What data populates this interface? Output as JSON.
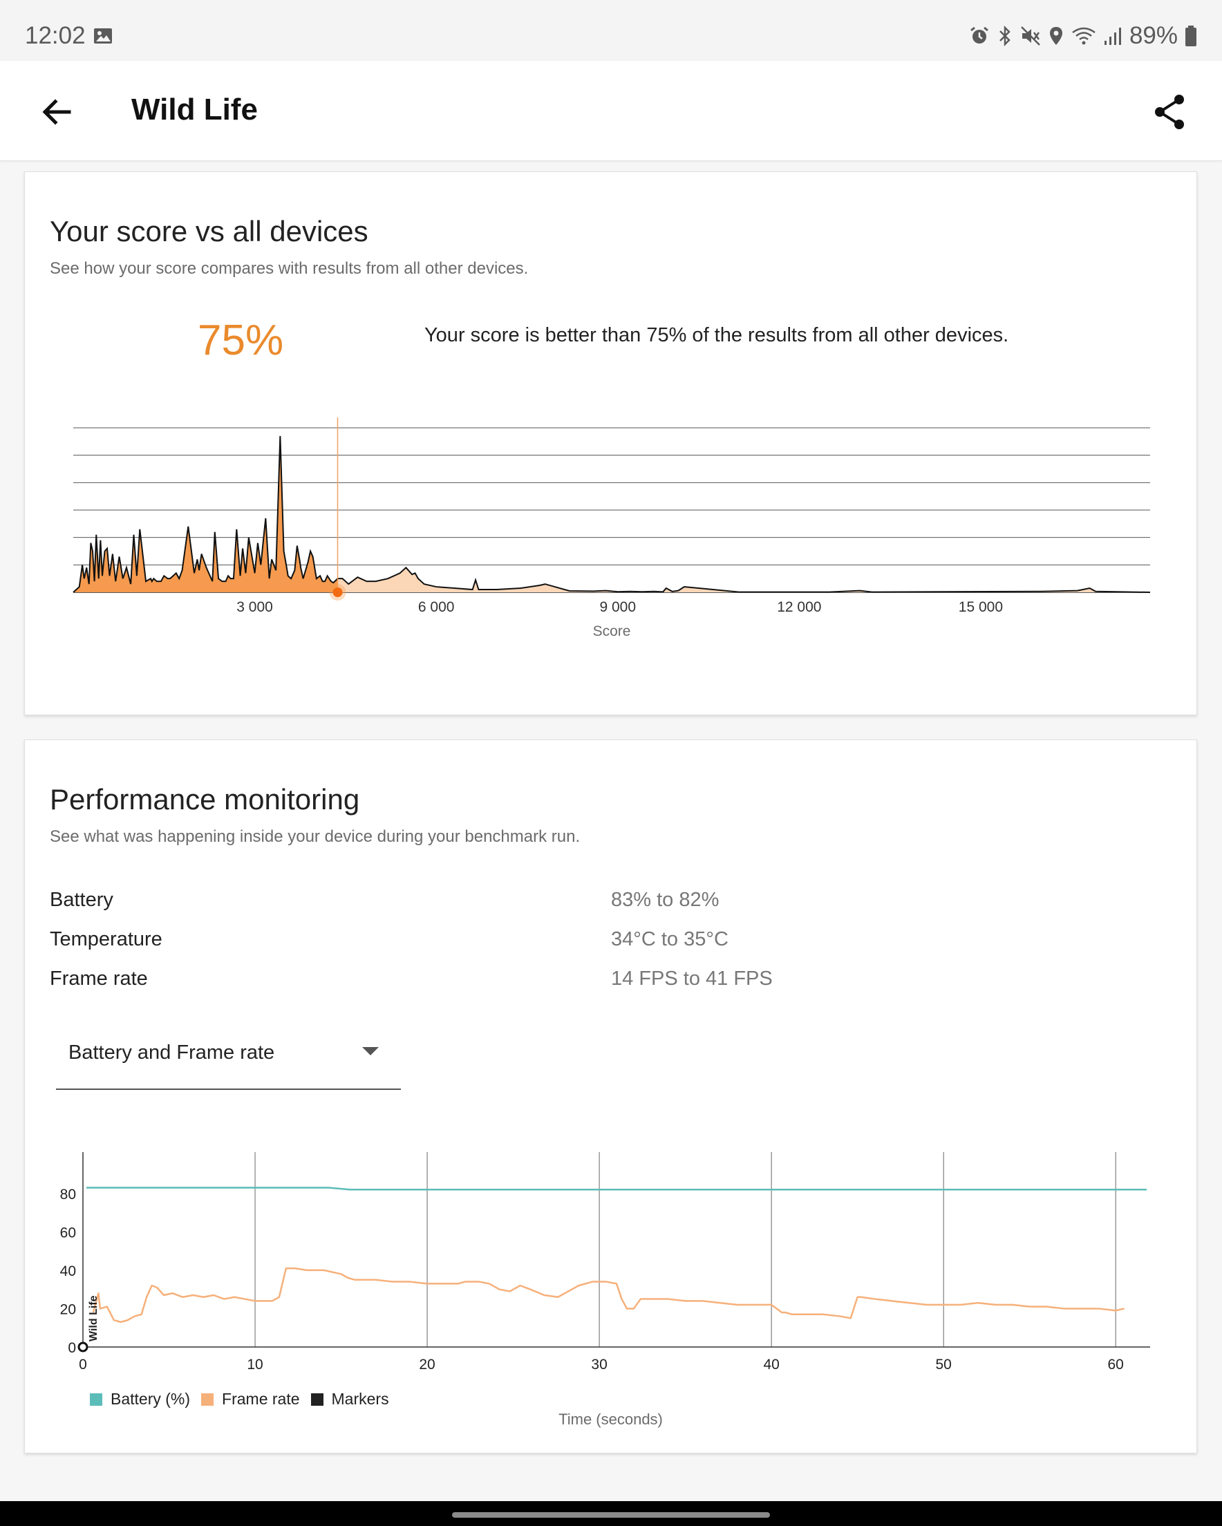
{
  "status_bar": {
    "time": "12:02",
    "battery_text": "89%",
    "icons": [
      "image-icon",
      "alarm-icon",
      "bluetooth-icon",
      "mute-icon",
      "location-icon",
      "wifi-icon",
      "signal-icon",
      "battery-icon"
    ]
  },
  "app_bar": {
    "title": "Wild Life",
    "back_icon": "arrow-left-icon",
    "share_icon": "share-icon"
  },
  "score_card": {
    "title": "Your score vs all devices",
    "subtitle": "See how your score compares with results from all other devices.",
    "percentile": "75%",
    "description": "Your score is better than 75% of the results from all other devices.",
    "accent_color": "#ea8a2c"
  },
  "performance_card": {
    "title": "Performance monitoring",
    "subtitle": "See what was happening inside your device during your benchmark run.",
    "metrics": [
      {
        "label": "Battery",
        "value": "83% to 82%"
      },
      {
        "label": "Temperature",
        "value": "34°C to 35°C"
      },
      {
        "label": "Frame rate",
        "value": "14 FPS to 41 FPS"
      }
    ],
    "dropdown": {
      "selected": "Battery and Frame rate"
    },
    "legend": [
      {
        "label": "Battery (%)",
        "color": "#5cbcb8"
      },
      {
        "label": "Frame rate",
        "color": "#f6b07a"
      },
      {
        "label": "Markers",
        "color": "#222222"
      }
    ],
    "marker_label": "Wild Life"
  },
  "chart_data": [
    {
      "type": "area",
      "xlabel": "Score",
      "ylabel": "",
      "xlim": [
        0,
        17800
      ],
      "ylim": [
        0,
        6
      ],
      "xticks": [
        3000,
        6000,
        9000,
        12000,
        15000
      ],
      "xtick_labels": [
        "3 000",
        "6 000",
        "9 000",
        "12 000",
        "15 000"
      ],
      "grid": true,
      "your_score": 4370,
      "series": [
        {
          "x": [
            0,
            100,
            150,
            180,
            220,
            260,
            290,
            320,
            350,
            380,
            420,
            450,
            480,
            520,
            560,
            600,
            650,
            700,
            760,
            820,
            880,
            950,
            1000,
            1050,
            1100,
            1200,
            1280,
            1300,
            1330,
            1380,
            1450,
            1500,
            1560,
            1600,
            1650,
            1700,
            1750,
            1800,
            1900,
            2000,
            2050,
            2080,
            2120,
            2200,
            2300,
            2340,
            2400,
            2460,
            2520,
            2560,
            2600,
            2650,
            2700,
            2760,
            2800,
            2850,
            2900,
            3000,
            3050,
            3100,
            3180,
            3240,
            3280,
            3350,
            3420,
            3480,
            3520,
            3550,
            3600,
            3660,
            3700,
            3740,
            3760,
            3800,
            3840,
            3880,
            3920,
            3960,
            4020,
            4080,
            4120,
            4160,
            4200,
            4260,
            4300,
            4370,
            4450,
            4550,
            4700,
            4850,
            5000,
            5200,
            5400,
            5500,
            5600,
            5650,
            5700,
            5800,
            6000,
            6300,
            6600,
            6650,
            6700,
            7000,
            7400,
            7700,
            7800,
            8200,
            8600,
            8800,
            9000,
            9200,
            9400,
            9600,
            9700,
            9750,
            9800,
            9900,
            10000,
            10100,
            11000,
            12500,
            13000,
            13200,
            16000,
            16600,
            16800,
            16900,
            17800
          ],
          "values": [
            0,
            0.2,
            1.0,
            0.5,
            0.9,
            0.3,
            1.8,
            1.5,
            0.4,
            2.1,
            0.5,
            1.9,
            0.6,
            1.5,
            1.6,
            0.6,
            1.4,
            0.4,
            1.3,
            0.5,
            0.9,
            0.3,
            2.1,
            0.6,
            2.3,
            0.4,
            0.5,
            0.4,
            0.5,
            0.4,
            0.4,
            0.6,
            0.5,
            0.5,
            0.6,
            0.7,
            0.5,
            0.8,
            2.4,
            0.7,
            1.2,
            0.8,
            1.4,
            0.9,
            0.4,
            2.2,
            0.5,
            0.4,
            0.4,
            0.6,
            0.5,
            0.5,
            2.3,
            0.6,
            1.6,
            0.7,
            2.0,
            0.7,
            1.8,
            1.0,
            2.7,
            0.5,
            1.2,
            0.8,
            5.7,
            1.5,
            1.0,
            0.6,
            0.5,
            0.8,
            1.7,
            1.2,
            0.9,
            0.5,
            0.8,
            1.1,
            1.5,
            1.3,
            0.5,
            0.6,
            0.4,
            0.4,
            0.6,
            0.4,
            0.35,
            0.5,
            0.5,
            0.3,
            0.55,
            0.4,
            0.4,
            0.5,
            0.7,
            0.9,
            0.65,
            0.7,
            0.5,
            0.3,
            0.2,
            0.15,
            0.1,
            0.45,
            0.1,
            0.1,
            0.15,
            0.25,
            0.3,
            0.05,
            0.04,
            0.06,
            0.02,
            0.03,
            0.02,
            0.03,
            0.02,
            0.02,
            0.15,
            0.03,
            0.06,
            0.2,
            0.01,
            0.01,
            0.06,
            0.01,
            0.03,
            0.06,
            0.15,
            0.03,
            0
          ]
        }
      ]
    },
    {
      "type": "line",
      "xlabel": "Time (seconds)",
      "ylabel": "",
      "xlim": [
        0,
        62
      ],
      "ylim": [
        0,
        90
      ],
      "xticks": [
        0,
        10,
        20,
        30,
        40,
        50,
        60
      ],
      "yticks": [
        0,
        20,
        40,
        60,
        80
      ],
      "grid": true,
      "marker_x": 0,
      "series": [
        {
          "name": "Battery (%)",
          "color": "#5cbcb8",
          "x": [
            0.2,
            14.3,
            15.5,
            61.8
          ],
          "values": [
            83,
            83,
            82,
            82
          ]
        },
        {
          "name": "Frame rate",
          "color": "#f6b07a",
          "x": [
            0.6,
            0.9,
            1.0,
            1.4,
            1.8,
            2.2,
            2.6,
            3.0,
            3.4,
            3.7,
            4.0,
            4.3,
            4.7,
            5.2,
            5.8,
            6.4,
            7.0,
            7.6,
            8.2,
            8.8,
            9.4,
            10.0,
            10.6,
            11.0,
            11.4,
            11.8,
            12.3,
            13.0,
            14.0,
            15.0,
            15.4,
            15.8,
            16.2,
            17.0,
            18.0,
            19.0,
            20.0,
            21.0,
            21.8,
            22.2,
            23.0,
            23.6,
            24.2,
            24.8,
            25.4,
            26.0,
            26.8,
            27.6,
            28.2,
            28.8,
            29.6,
            30.4,
            31.0,
            31.3,
            31.6,
            32.0,
            32.4,
            33.0,
            34.0,
            35.0,
            36.0,
            37.0,
            38.0,
            39.0,
            40.0,
            40.6,
            40.8,
            41.2,
            42.0,
            43.0,
            44.0,
            44.6,
            45.0,
            45.2,
            46.0,
            47.0,
            48.0,
            49.0,
            50.0,
            51.0,
            52.0,
            53.0,
            54.0,
            55.0,
            56.0,
            57.0,
            58.0,
            59.0,
            60.0,
            60.5
          ],
          "values": [
            18,
            28,
            20,
            21,
            14,
            13,
            14,
            16,
            17,
            26,
            32,
            31,
            27,
            28,
            26,
            27,
            26,
            27,
            25,
            26,
            25,
            24,
            24,
            24,
            26,
            41,
            41,
            40,
            40,
            38,
            36,
            35,
            35,
            35,
            34,
            34,
            33,
            33,
            33,
            34,
            34,
            33,
            30,
            29,
            32,
            30,
            27,
            26,
            29,
            32,
            34,
            34,
            33,
            25,
            20,
            20,
            25,
            25,
            25,
            24,
            24,
            23,
            22,
            22,
            22,
            18,
            18,
            17,
            17,
            17,
            16,
            15,
            26,
            26,
            25,
            24,
            23,
            22,
            22,
            22,
            23,
            22,
            22,
            21,
            21,
            20,
            20,
            20,
            19,
            20
          ]
        }
      ]
    }
  ]
}
